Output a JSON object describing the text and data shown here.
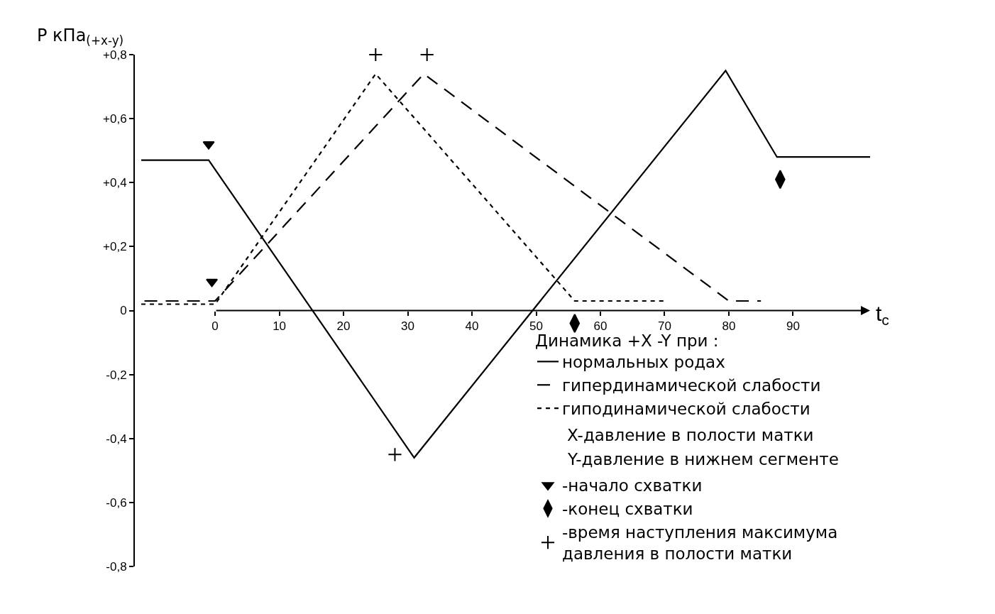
{
  "chart_data": {
    "type": "line",
    "xlabel": "t$_{c}$",
    "ylabel": "P кПа$_{(+x-y)}$",
    "xlim": [
      -12.5,
      102
    ],
    "xticks": [
      0,
      10,
      20,
      30,
      40,
      50,
      60,
      70,
      80,
      90
    ],
    "ylim": [
      -0.8,
      0.8
    ],
    "yticks": [
      {
        "value": 0.8,
        "label": "+0,8"
      },
      {
        "value": 0.6,
        "label": "+0,6"
      },
      {
        "value": 0.4,
        "label": "+0,4"
      },
      {
        "value": 0.2,
        "label": "+0,2"
      },
      0,
      {
        "value": -0.2,
        "label": "-0,2"
      },
      {
        "value": -0.4,
        "label": "-0,4"
      },
      {
        "value": -0.6,
        "label": "-0,6"
      },
      {
        "value": -0.8,
        "label": "-0,8"
      }
    ],
    "legend": "bottom right",
    "legend_title": "Динамика +X -Y при :",
    "annotations": [
      "X-давление в полости матки",
      "Y-давление в нижнем сегменте"
    ],
    "series": [
      {
        "name": "нормальных родах",
        "line_style": "solid",
        "color": "#000000",
        "x": [
          -11.5,
          -1,
          31,
          79.5,
          87.5,
          102
        ],
        "values": [
          0.47,
          0.47,
          -0.46,
          0.75,
          0.48,
          0.48
        ]
      },
      {
        "name": "гипердинамической слабости",
        "line_style": "dashed",
        "color": "#000000",
        "x": [
          -11,
          0,
          32.5,
          80,
          85
        ],
        "values": [
          0.03,
          0.03,
          0.74,
          0.03,
          0.03
        ]
      },
      {
        "name": "гиподинамической слабости",
        "line_style": "dotted",
        "color": "#000000",
        "x": [
          -11.5,
          0,
          25,
          56,
          70
        ],
        "values": [
          0.02,
          0.02,
          0.74,
          0.03,
          0.03
        ]
      },
      {
        "name": "-начало схватки",
        "type": "scatter",
        "marker": "triangle",
        "color": "#000000",
        "x": [
          -1,
          -0.5
        ],
        "values": [
          0.52,
          0.09
        ]
      },
      {
        "name": "-конец схватки",
        "type": "scatter",
        "marker": "diamond",
        "color": "#000000",
        "x": [
          88,
          56
        ],
        "values": [
          0.41,
          -0.04
        ]
      },
      {
        "name": "-время наступления максимума\nдавления в полости матки",
        "type": "scatter",
        "marker": "cross",
        "color": "#000000",
        "x": [
          25,
          33,
          28
        ],
        "values": [
          0.8,
          0.8,
          -0.45
        ]
      }
    ]
  }
}
